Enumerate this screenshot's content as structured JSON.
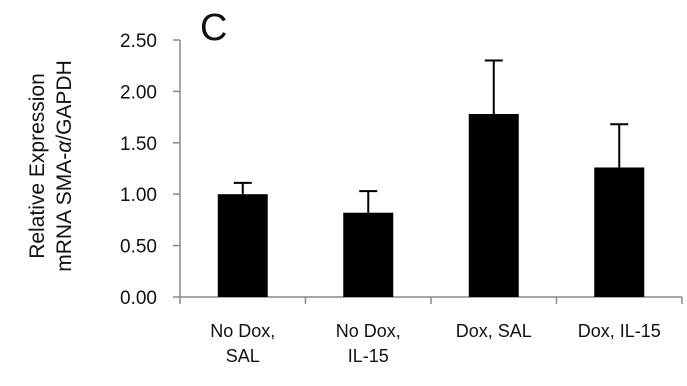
{
  "panel_label": "C",
  "chart_data": {
    "type": "bar",
    "categories": [
      [
        "No Dox,",
        "SAL"
      ],
      [
        "No Dox,",
        "IL-15"
      ],
      [
        "Dox, SAL"
      ],
      [
        "Dox, IL-15"
      ]
    ],
    "values": [
      1.0,
      0.82,
      1.78,
      1.26
    ],
    "errors": [
      0.11,
      0.21,
      0.52,
      0.42
    ],
    "ylabel": {
      "line1": "Relative Expression",
      "line2_before": "mRNA SMA-",
      "line2_italic": "α",
      "line2_after": "/GAPDH"
    },
    "ylim": [
      0,
      2.5
    ],
    "yticks": [
      "0.00",
      "0.50",
      "1.00",
      "1.50",
      "2.00",
      "2.50"
    ],
    "grid": false,
    "legend": "none",
    "bar_color": "#000000"
  }
}
